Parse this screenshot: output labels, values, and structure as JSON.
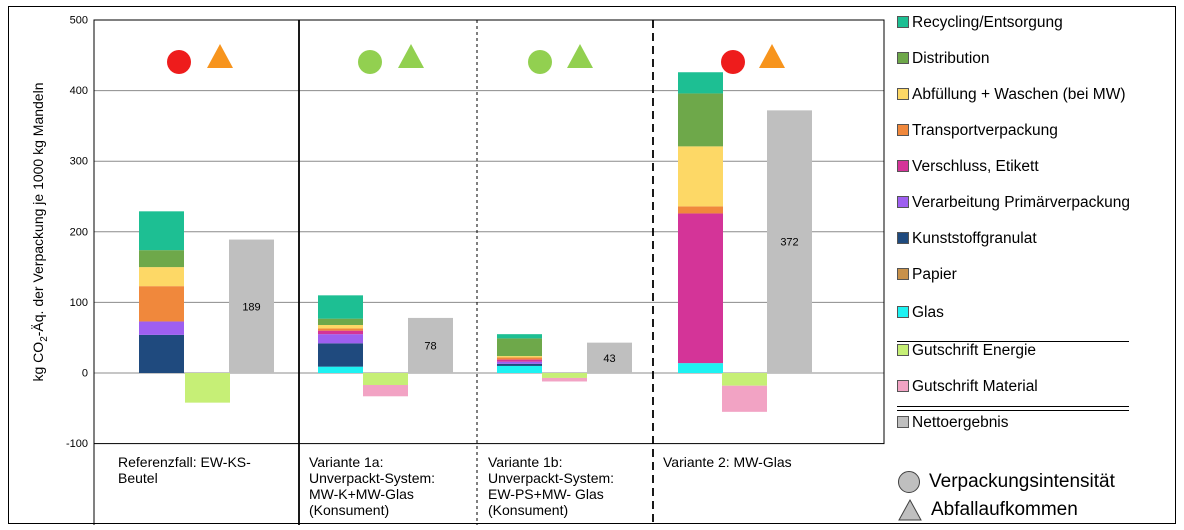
{
  "chart_data": {
    "type": "bar",
    "stacked": true,
    "ylabel_main": "kg CO",
    "ylabel_sub": "2",
    "ylabel_rest": "-Äq. der Verpackung je 1000 kg Mandeln",
    "ylim": [
      -100,
      500
    ],
    "yticks": [
      -100,
      0,
      100,
      200,
      300,
      400,
      500
    ],
    "grid": true,
    "legend_position": "right",
    "categories": [
      {
        "lines": [
          "Referenzfall: EW-KS-",
          "Beutel"
        ]
      },
      {
        "lines": [
          "Variante 1a:",
          "Unverpackt-System:",
          "MW-K+MW-Glas",
          "(Konsument)"
        ]
      },
      {
        "lines": [
          "Variante 1b:",
          "Unverpackt-System:",
          "EW-PS+MW- Glas",
          "(Konsument)"
        ]
      },
      {
        "lines": [
          "Variante 2: MW-Glas"
        ]
      }
    ],
    "series": [
      {
        "name": "Glas",
        "color": "#1ef2f2",
        "values": [
          0,
          9,
          10,
          14
        ]
      },
      {
        "name": "Papier",
        "color": "#c8914a",
        "values": [
          0,
          0,
          0,
          0
        ]
      },
      {
        "name": "Kunststoffgranulat",
        "color": "#1f4a7e",
        "values": [
          54,
          33,
          3,
          0
        ]
      },
      {
        "name": "Verarbeitung Primärverpackung",
        "color": "#9e5ff0",
        "values": [
          19,
          13,
          3,
          0
        ]
      },
      {
        "name": "Verschluss, Etikett",
        "color": "#d43498",
        "values": [
          0,
          5,
          3,
          212
        ]
      },
      {
        "name": "Transportverpackung",
        "color": "#f0883c",
        "values": [
          50,
          3,
          3,
          10
        ]
      },
      {
        "name": "Abfüllung + Waschen (bei MW)",
        "color": "#fdd866",
        "values": [
          27,
          5,
          2,
          85
        ]
      },
      {
        "name": "Distribution",
        "color": "#6ea84a",
        "values": [
          24,
          9,
          25,
          75
        ]
      },
      {
        "name": "Recycling/Entsorgung",
        "color": "#1dbf93",
        "values": [
          55,
          33,
          6,
          30
        ]
      }
    ],
    "credit_series": [
      {
        "name": "Gutschrift Energie",
        "color": "#c6ef76",
        "values": [
          -42,
          -17,
          -7,
          -18
        ]
      },
      {
        "name": "Gutschrift Material",
        "color": "#f2a3c4",
        "values": [
          0,
          -16,
          -5,
          -37
        ]
      }
    ],
    "net": {
      "name": "Nettoergebnis",
      "color": "#bfbfbf",
      "values": [
        189,
        78,
        43,
        372
      ],
      "labels": [
        "189",
        "78",
        "43",
        "372"
      ]
    },
    "indicators": [
      {
        "circle": "#ee1c1c",
        "triangle": "#f7941d"
      },
      {
        "circle": "#92d050",
        "triangle": "#92d050"
      },
      {
        "circle": "#92d050",
        "triangle": "#92d050"
      },
      {
        "circle": "#ee1c1c",
        "triangle": "#f7941d"
      }
    ],
    "legend": [
      {
        "label": "Recycling/Entsorgung",
        "color": "#1dbf93"
      },
      {
        "label": "Distribution",
        "color": "#6ea84a"
      },
      {
        "label": "Abfüllung + Waschen (bei MW)",
        "color": "#fdd866"
      },
      {
        "label": "Transportverpackung",
        "color": "#f0883c"
      },
      {
        "label": "Verschluss, Etikett",
        "color": "#d43498"
      },
      {
        "label": "Verarbeitung Primärverpackung",
        "color": "#9e5ff0"
      },
      {
        "label": "Kunststoffgranulat",
        "color": "#1f4a7e"
      },
      {
        "label": "Papier",
        "color": "#c8914a"
      },
      {
        "label": "Glas",
        "color": "#1ef2f2"
      },
      {
        "label": "Gutschrift Energie",
        "color": "#c6ef76"
      },
      {
        "label": "Gutschrift Material",
        "color": "#f2a3c4"
      },
      {
        "label": "Nettoergebnis",
        "color": "#bfbfbf"
      }
    ],
    "key": {
      "circle_label": "Verpackungsintensität",
      "triangle_label": "Abfallaufkommen",
      "shape_color": "#bfbfbf"
    }
  }
}
